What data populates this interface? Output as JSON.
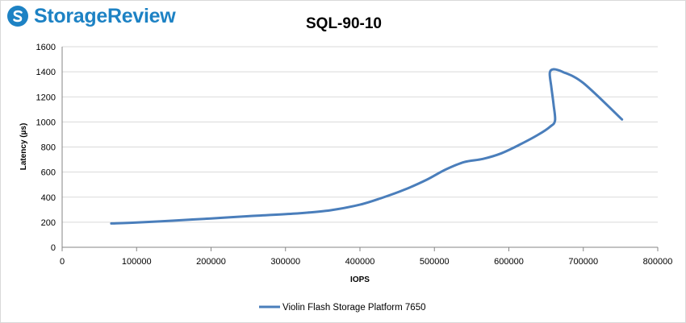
{
  "brand": {
    "logo_text": "StorageReview",
    "logo_icon": "storagereview-logo-icon",
    "logo_color": "#1d82c4"
  },
  "chart_data": {
    "type": "line",
    "title": "SQL-90-10",
    "xlabel": "IOPS",
    "ylabel": "Latency (µs)",
    "xlim": [
      0,
      800000
    ],
    "ylim": [
      0,
      1600
    ],
    "x_ticks": [
      "0",
      "100000",
      "200000",
      "300000",
      "400000",
      "500000",
      "600000",
      "700000",
      "800000"
    ],
    "y_ticks": [
      "0",
      "200",
      "400",
      "600",
      "800",
      "1000",
      "1200",
      "1400",
      "1600"
    ],
    "grid": true,
    "legend_position": "bottom",
    "series": [
      {
        "name": "Violin Flash Storage Platform 7650",
        "color": "#4a7ebb",
        "x": [
          66000,
          100000,
          150000,
          200000,
          250000,
          310000,
          360000,
          400000,
          430000,
          460000,
          490000,
          515000,
          540000,
          565000,
          590000,
          615000,
          640000,
          655000,
          662000,
          660000,
          657000,
          655000,
          660000,
          672000,
          700000,
          752000
        ],
        "y": [
          190,
          198,
          213,
          230,
          248,
          268,
          295,
          340,
          395,
          460,
          540,
          620,
          680,
          705,
          750,
          820,
          900,
          960,
          1010,
          1140,
          1280,
          1390,
          1420,
          1400,
          1310,
          1020
        ]
      }
    ]
  }
}
